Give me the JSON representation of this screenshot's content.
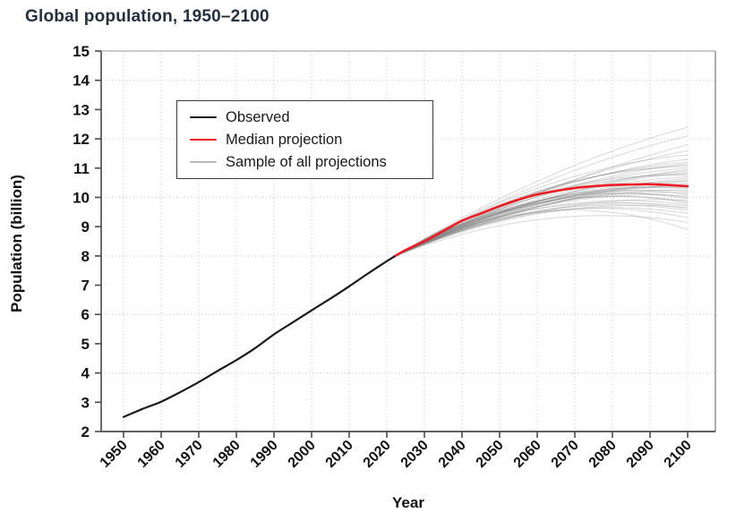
{
  "title": "Global population, 1950–2100",
  "legend": {
    "items": [
      {
        "label": "Observed",
        "color": "#1a1a1a",
        "thickness": 2.2
      },
      {
        "label": "Median projection",
        "color": "#ed1c24",
        "thickness": 2.6
      },
      {
        "label": "Sample of all projections",
        "color": "#b9b9b9",
        "thickness": 1.6
      }
    ]
  },
  "colors": {
    "title": "#24303d",
    "observed_line": "#1a1a1a",
    "median_line": "#ed1c24",
    "sample_line": "#7d7d7d",
    "gridline": "#c4c4c4",
    "spine_dark": "#4a4a4a",
    "spine_light": "#adadad",
    "tick_text": "#111111"
  },
  "chart_data": {
    "type": "line",
    "title": "Global population, 1950–2100",
    "xlabel": "Year",
    "ylabel": "Population (billion)",
    "xlim": [
      1944,
      2107
    ],
    "ylim": [
      2,
      15
    ],
    "x_ticks": [
      1950,
      1960,
      1970,
      1980,
      1990,
      2000,
      2010,
      2020,
      2030,
      2040,
      2050,
      2060,
      2070,
      2080,
      2090,
      2100
    ],
    "y_ticks": [
      2,
      3,
      4,
      5,
      6,
      7,
      8,
      9,
      10,
      11,
      12,
      13,
      14,
      15
    ],
    "grid": "dotted; horizontal at even y values (4-14), vertical at every decade",
    "legend_position": "upper-left inside plot",
    "series": [
      {
        "name": "Observed",
        "color": "#1a1a1a",
        "x": [
          1950,
          1955,
          1960,
          1965,
          1970,
          1975,
          1980,
          1985,
          1990,
          1995,
          2000,
          2005,
          2010,
          2015,
          2020,
          2022
        ],
        "y": [
          2.5,
          2.77,
          3.02,
          3.34,
          3.69,
          4.07,
          4.44,
          4.85,
          5.32,
          5.73,
          6.14,
          6.54,
          6.96,
          7.4,
          7.82,
          7.98
        ]
      },
      {
        "name": "Median projection",
        "color": "#ed1c24",
        "x": [
          2022,
          2025,
          2030,
          2035,
          2040,
          2045,
          2050,
          2055,
          2060,
          2065,
          2070,
          2075,
          2080,
          2085,
          2090,
          2095,
          2100
        ],
        "y": [
          7.98,
          8.2,
          8.5,
          8.85,
          9.2,
          9.45,
          9.7,
          9.92,
          10.1,
          10.22,
          10.32,
          10.38,
          10.42,
          10.44,
          10.45,
          10.42,
          10.38
        ]
      },
      {
        "name": "Sample of all projections",
        "color": "#7d7d7d",
        "opacity": 0.3,
        "start_year": 2022,
        "start_value": 7.98,
        "end_year": 2100,
        "end_values": [
          8.9,
          9.15,
          9.3,
          9.45,
          9.55,
          9.6,
          9.65,
          9.7,
          9.75,
          9.8,
          9.85,
          9.9,
          9.95,
          10.0,
          10.05,
          10.1,
          10.15,
          10.2,
          10.25,
          10.3,
          10.32,
          10.35,
          10.4,
          10.45,
          10.5,
          10.55,
          10.6,
          10.65,
          10.7,
          10.75,
          10.8,
          10.85,
          10.9,
          10.95,
          11.0,
          11.05,
          11.1,
          11.15,
          11.2,
          11.3,
          11.45,
          11.6,
          11.8,
          12.1,
          12.4
        ]
      }
    ]
  }
}
